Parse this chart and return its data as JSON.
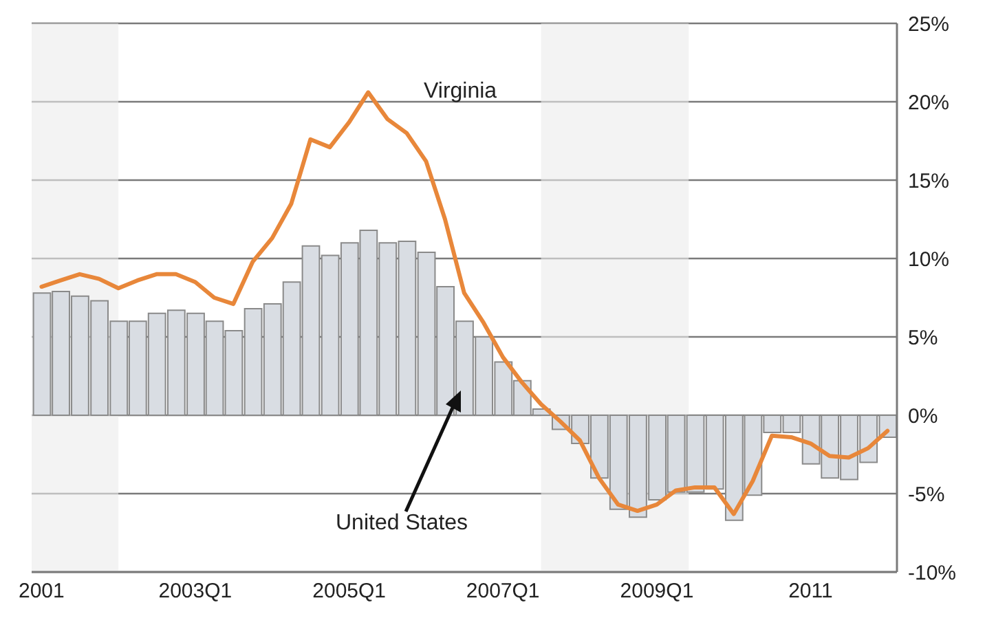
{
  "chart_data": {
    "type": "bar",
    "x": [
      "2001-01",
      "2001-04",
      "2001-07",
      "2001-10",
      "2002-01",
      "2002-04",
      "2002-07",
      "2002-10",
      "2003-01",
      "2003-04",
      "2003-07",
      "2003-10",
      "2004-01",
      "2004-04",
      "2004-07",
      "2004-10",
      "2005-01",
      "2005-04",
      "2005-07",
      "2005-10",
      "2006-01",
      "2006-04",
      "2006-07",
      "2006-10",
      "2007-01",
      "2007-04",
      "2007-07",
      "2007-10",
      "2008-01",
      "2008-04",
      "2008-07",
      "2008-10",
      "2009-01",
      "2009-04",
      "2009-07",
      "2009-10",
      "2010-01",
      "2010-04",
      "2010-07",
      "2010-10",
      "2011-01",
      "2011-04",
      "2011-07",
      "2011-10",
      "2012-01"
    ],
    "series": [
      {
        "name": "United States",
        "color": "#d9dde3",
        "values": [
          7.8,
          7.9,
          7.6,
          7.3,
          6.0,
          6.0,
          6.5,
          6.7,
          6.5,
          6.0,
          5.4,
          6.8,
          7.1,
          8.5,
          10.8,
          10.2,
          11.0,
          11.8,
          11.0,
          11.1,
          10.4,
          8.2,
          6.0,
          5.0,
          3.4,
          2.2,
          0.4,
          -0.9,
          -1.8,
          -4.0,
          -6.0,
          -6.5,
          -5.4,
          -4.9,
          -4.9,
          -4.7,
          -6.7,
          -5.1,
          -1.1,
          -1.1,
          -3.1,
          -4.0,
          -4.1,
          -3.0,
          -1.4
        ]
      },
      {
        "name": "Virginia",
        "type": "line",
        "color": "#e8873a",
        "values": [
          8.2,
          8.6,
          9.0,
          8.7,
          8.1,
          8.6,
          9.0,
          9.0,
          8.5,
          7.5,
          7.1,
          9.8,
          11.3,
          13.5,
          17.6,
          17.1,
          18.7,
          20.6,
          18.9,
          18.0,
          16.2,
          12.5,
          7.8,
          5.9,
          3.7,
          2.1,
          0.7,
          -0.4,
          -1.6,
          -4.0,
          -5.7,
          -6.1,
          -5.7,
          -4.8,
          -4.6,
          -4.6,
          -6.3,
          -4.2,
          -1.3,
          -1.4,
          -1.8,
          -2.6,
          -2.7,
          -2.1,
          -1.0
        ]
      }
    ],
    "xlim": [
      "2000-11-15",
      "2012-02-15"
    ],
    "xticks": [
      {
        "value": "2001-01",
        "label": "2001"
      },
      {
        "value": "2003-01",
        "label": "2003Q1"
      },
      {
        "value": "2005-01",
        "label": "2005Q1"
      },
      {
        "value": "2007-01",
        "label": "2007Q1"
      },
      {
        "value": "2009-01",
        "label": "2009Q1"
      },
      {
        "value": "2011-01",
        "label": "2011"
      }
    ],
    "ylim": [
      -10,
      25
    ],
    "yticks": [
      {
        "value": -10,
        "label": "-10%"
      },
      {
        "value": -5,
        "label": "-5%"
      },
      {
        "value": 0,
        "label": "0%"
      },
      {
        "value": 5,
        "label": "5%"
      },
      {
        "value": 10,
        "label": "10%"
      },
      {
        "value": 15,
        "label": "15%"
      },
      {
        "value": 20,
        "label": "20%"
      },
      {
        "value": 25,
        "label": "25%"
      }
    ],
    "bands": [
      {
        "axis": "x",
        "from": "2000-11-15",
        "to": "2002-01",
        "color": "#ebebeb"
      },
      {
        "axis": "x",
        "from": "2007-07",
        "to": "2009-06",
        "color": "#ebebeb"
      }
    ],
    "grid": "y",
    "legend": false
  }
}
